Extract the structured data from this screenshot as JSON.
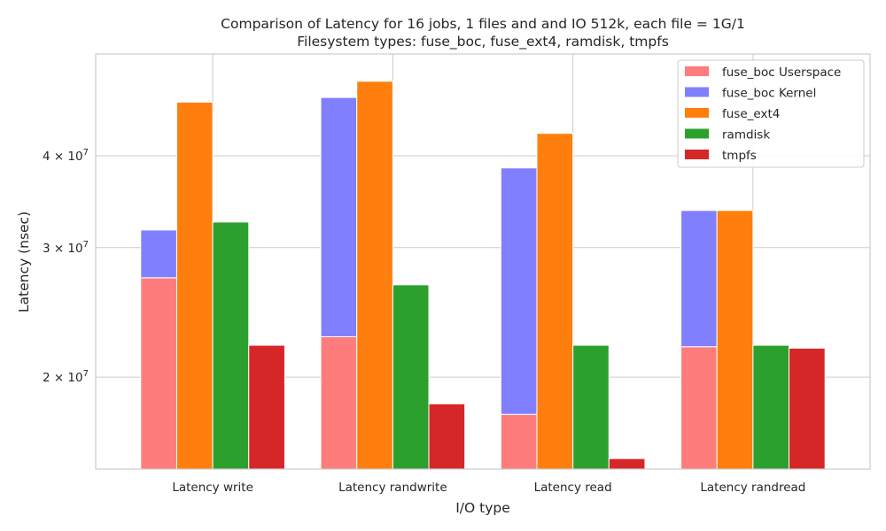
{
  "chart_data": {
    "type": "bar",
    "title_line1": "Comparison of Latency for 16 jobs, 1 files and  and IO 512k, each file = 1G/1",
    "title_line2": "Filesystem types: fuse_boc, fuse_ext4, ramdisk, tmpfs",
    "xlabel": "I/O type",
    "ylabel": "Latency (nsec)",
    "yscale": "log",
    "ylim": [
      15000000,
      55000000
    ],
    "yticks": [
      {
        "value": 20000000,
        "label_base": "2 × 10",
        "label_exp": "7"
      },
      {
        "value": 30000000,
        "label_base": "3 × 10",
        "label_exp": "7"
      },
      {
        "value": 40000000,
        "label_base": "4 × 10",
        "label_exp": "7"
      }
    ],
    "grid": true,
    "legend_position": "top-right",
    "categories": [
      "Latency write",
      "Latency randwrite",
      "Latency read",
      "Latency randread"
    ],
    "series": [
      {
        "name": "fuse_boc Userspace",
        "color": "#ff7c7c",
        "group": 0,
        "values": [
          27300000,
          22700000,
          17800000,
          22000000
        ]
      },
      {
        "name": "fuse_boc Kernel",
        "color": "#8080ff",
        "group": 0,
        "stacked_on": "fuse_boc Userspace",
        "values": [
          31700000,
          48000000,
          38500000,
          33700000
        ]
      },
      {
        "name": "fuse_ext4",
        "color": "#ff7f0e",
        "group": 1,
        "values": [
          47300000,
          50500000,
          42900000,
          33700000
        ]
      },
      {
        "name": "ramdisk",
        "color": "#2ca02c",
        "group": 2,
        "values": [
          32500000,
          26700000,
          22100000,
          22100000
        ]
      },
      {
        "name": "tmpfs",
        "color": "#d62728",
        "group": 3,
        "values": [
          22100000,
          18400000,
          15500000,
          21900000
        ]
      }
    ]
  }
}
